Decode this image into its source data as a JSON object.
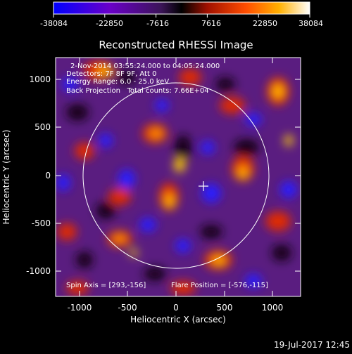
{
  "colorbar": {
    "ticks": [
      "-38084",
      "-22850",
      "-7616",
      "7616",
      "22850",
      "38084"
    ]
  },
  "plot": {
    "title": "Reconstructed RHESSI Image",
    "xlabel": "Heliocentric X (arcsec)",
    "ylabel": "Heliocentric Y (arcsec)",
    "xticks": [
      "-1000",
      "-500",
      "0",
      "500",
      "1000"
    ],
    "yticks": [
      "1000",
      "500",
      "0",
      "-500",
      "-1000"
    ]
  },
  "annotations": {
    "line1": "2-Nov-2014 03:55:24.000 to 04:05:24.000",
    "line2": "Detectors: 7F 8F 9F, Att 0",
    "line3": "Energy Range: 6.0 - 25.0 keV",
    "line4": "Back Projection   Total counts: 7.66E+04",
    "bottom_left": "Spin Axis = [293,-156]",
    "bottom_right": "Flare Position = [-576,-115]"
  },
  "footer": {
    "timestamp": "19-Jul-2017 12:45"
  },
  "colors": {
    "background": "#000000",
    "axes": "#ffffff",
    "colormap": [
      "#0000ff",
      "#6a00c8",
      "#4a1a7a",
      "#000000",
      "#d22800",
      "#ff9a00",
      "#ffffff"
    ]
  }
}
